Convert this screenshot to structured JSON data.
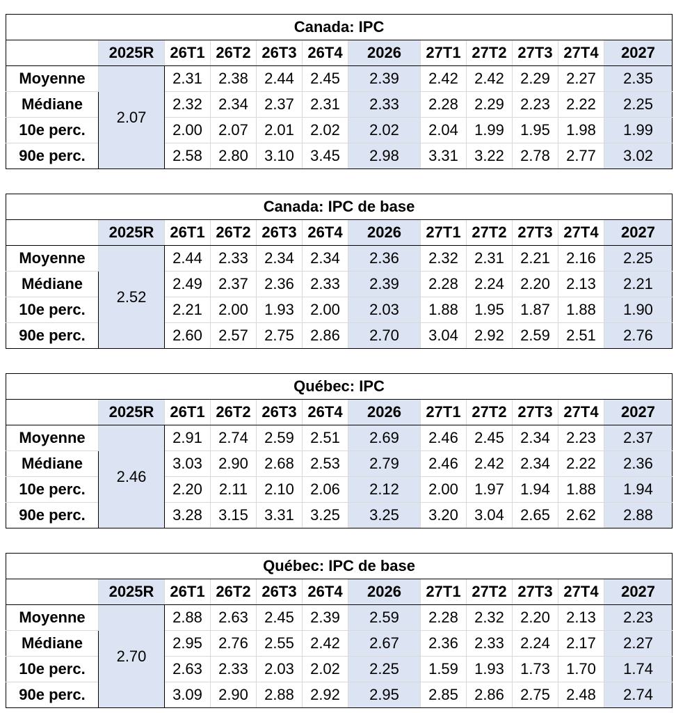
{
  "columns": [
    "2025R",
    "26T1",
    "26T2",
    "26T3",
    "26T4",
    "2026",
    "27T1",
    "27T2",
    "27T3",
    "27T4",
    "2027"
  ],
  "row_labels": [
    "Moyenne",
    "Médiane",
    "10e perc.",
    "90e perc."
  ],
  "colors": {
    "shade": "#dce3f2",
    "border": "#000000",
    "grid": "#d9d9d9"
  },
  "tables": [
    {
      "title": "Canada: IPC",
      "base_2025R": "2.07",
      "rows": [
        [
          "2.31",
          "2.38",
          "2.44",
          "2.45",
          "2.39",
          "2.42",
          "2.42",
          "2.29",
          "2.27",
          "2.35"
        ],
        [
          "2.32",
          "2.34",
          "2.37",
          "2.31",
          "2.33",
          "2.28",
          "2.29",
          "2.23",
          "2.22",
          "2.25"
        ],
        [
          "2.00",
          "2.07",
          "2.01",
          "2.02",
          "2.02",
          "2.04",
          "1.99",
          "1.95",
          "1.98",
          "1.99"
        ],
        [
          "2.58",
          "2.80",
          "3.10",
          "3.45",
          "2.98",
          "3.31",
          "3.22",
          "2.78",
          "2.77",
          "3.02"
        ]
      ]
    },
    {
      "title": "Canada: IPC de base",
      "base_2025R": "2.52",
      "rows": [
        [
          "2.44",
          "2.33",
          "2.34",
          "2.34",
          "2.36",
          "2.32",
          "2.31",
          "2.21",
          "2.16",
          "2.25"
        ],
        [
          "2.49",
          "2.37",
          "2.36",
          "2.33",
          "2.39",
          "2.28",
          "2.24",
          "2.20",
          "2.13",
          "2.21"
        ],
        [
          "2.21",
          "2.00",
          "1.93",
          "2.00",
          "2.03",
          "1.88",
          "1.95",
          "1.87",
          "1.88",
          "1.90"
        ],
        [
          "2.60",
          "2.57",
          "2.75",
          "2.86",
          "2.70",
          "3.04",
          "2.92",
          "2.59",
          "2.51",
          "2.76"
        ]
      ]
    },
    {
      "title": "Québec: IPC",
      "base_2025R": "2.46",
      "rows": [
        [
          "2.91",
          "2.74",
          "2.59",
          "2.51",
          "2.69",
          "2.46",
          "2.45",
          "2.34",
          "2.23",
          "2.37"
        ],
        [
          "3.03",
          "2.90",
          "2.68",
          "2.53",
          "2.79",
          "2.46",
          "2.42",
          "2.34",
          "2.22",
          "2.36"
        ],
        [
          "2.20",
          "2.11",
          "2.10",
          "2.06",
          "2.12",
          "2.00",
          "1.97",
          "1.94",
          "1.88",
          "1.94"
        ],
        [
          "3.28",
          "3.15",
          "3.31",
          "3.25",
          "3.25",
          "3.20",
          "3.04",
          "2.65",
          "2.62",
          "2.88"
        ]
      ]
    },
    {
      "title": "Québec: IPC de base",
      "base_2025R": "2.70",
      "rows": [
        [
          "2.88",
          "2.63",
          "2.45",
          "2.39",
          "2.59",
          "2.28",
          "2.32",
          "2.20",
          "2.13",
          "2.23"
        ],
        [
          "2.95",
          "2.76",
          "2.55",
          "2.42",
          "2.67",
          "2.36",
          "2.33",
          "2.24",
          "2.17",
          "2.27"
        ],
        [
          "2.63",
          "2.33",
          "2.03",
          "2.02",
          "2.25",
          "1.59",
          "1.93",
          "1.73",
          "1.70",
          "1.74"
        ],
        [
          "3.09",
          "2.90",
          "2.88",
          "2.92",
          "2.95",
          "2.85",
          "2.86",
          "2.75",
          "2.48",
          "2.74"
        ]
      ]
    }
  ]
}
